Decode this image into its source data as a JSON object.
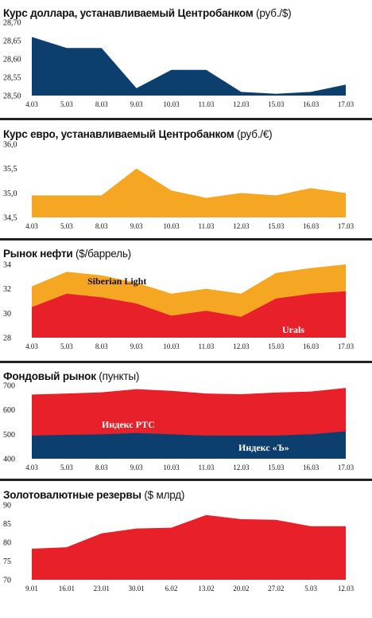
{
  "chart_data": [
    {
      "type": "area",
      "title_bold": "Курс доллара, устанавливаемый Центробанком",
      "title_unit": " (руб./$)",
      "categories": [
        "4.03",
        "5.03",
        "8.03",
        "9.03",
        "10.03",
        "11.03",
        "12.03",
        "15.03",
        "16.03",
        "17.03"
      ],
      "series": [
        {
          "values": [
            28.66,
            28.63,
            28.63,
            28.52,
            28.57,
            28.57,
            28.51,
            28.505,
            28.51,
            28.53
          ],
          "color": "#0d3f6e"
        }
      ],
      "yticks": [
        "28,50",
        "28,55",
        "28,60",
        "28,65",
        "28,70"
      ],
      "ylim": [
        28.5,
        28.7
      ]
    },
    {
      "type": "area",
      "title_bold": "Курс евро, устанавливаемый Центробанком",
      "title_unit": " (руб./€)",
      "categories": [
        "4.03",
        "5.03",
        "8.03",
        "9.03",
        "10.03",
        "11.03",
        "12.03",
        "15.03",
        "16.03",
        "17.03"
      ],
      "series": [
        {
          "values": [
            34.95,
            34.95,
            34.95,
            35.5,
            35.05,
            34.9,
            35.0,
            34.95,
            35.1,
            35.0
          ],
          "color": "#f5a623"
        }
      ],
      "yticks": [
        "34,5",
        "35,0",
        "35,5",
        "36,0"
      ],
      "ylim": [
        34.5,
        36.0
      ]
    },
    {
      "type": "area",
      "title_bold": "Рынок нефти",
      "title_unit": " ($/баррель)",
      "categories": [
        "4.03",
        "5.03",
        "8.03",
        "9.03",
        "10.03",
        "11.03",
        "12.03",
        "15.03",
        "16.03",
        "17.03"
      ],
      "series": [
        {
          "name": "Siberian Light",
          "values": [
            32.2,
            33.4,
            33.1,
            32.5,
            31.6,
            32.0,
            31.6,
            33.3,
            33.7,
            34.0
          ],
          "color": "#f5a623"
        },
        {
          "name": "Urals",
          "values": [
            30.5,
            31.6,
            31.3,
            30.8,
            29.8,
            30.2,
            29.7,
            31.2,
            31.6,
            31.8
          ],
          "color": "#e8202a"
        }
      ],
      "yticks": [
        "28",
        "30",
        "32",
        "34"
      ],
      "ylim": [
        28,
        34
      ]
    },
    {
      "type": "area",
      "title_bold": "Фондовый рынок",
      "title_unit": " (пункты)",
      "categories": [
        "4.03",
        "5.03",
        "8.03",
        "9.03",
        "10.03",
        "11.03",
        "12.03",
        "15.03",
        "16.03",
        "17.03"
      ],
      "series": [
        {
          "name": "Индекс РТС",
          "values": [
            663,
            667,
            672,
            685,
            678,
            667,
            664,
            671,
            675,
            690
          ],
          "color": "#e8202a"
        },
        {
          "name": "Индекс «Ъ»",
          "values": [
            495,
            498,
            500,
            505,
            500,
            495,
            495,
            495,
            500,
            512
          ],
          "color": "#0d3f6e"
        }
      ],
      "yticks": [
        "400",
        "500",
        "600",
        "700"
      ],
      "ylim": [
        400,
        700
      ]
    },
    {
      "type": "area",
      "title_bold": "Золотовалютные резервы",
      "title_unit": " ($ млрд)",
      "categories": [
        "9.01",
        "16.01",
        "23.01",
        "30.01",
        "6.02",
        "13.02",
        "20.02",
        "27.02",
        "5.03",
        "12.03"
      ],
      "series": [
        {
          "values": [
            78.3,
            78.7,
            82.4,
            83.7,
            83.9,
            87.3,
            86.2,
            86.0,
            84.3,
            84.3
          ],
          "color": "#e8202a"
        }
      ],
      "yticks": [
        "70",
        "75",
        "80",
        "85",
        "90"
      ],
      "ylim": [
        70,
        90
      ]
    }
  ]
}
